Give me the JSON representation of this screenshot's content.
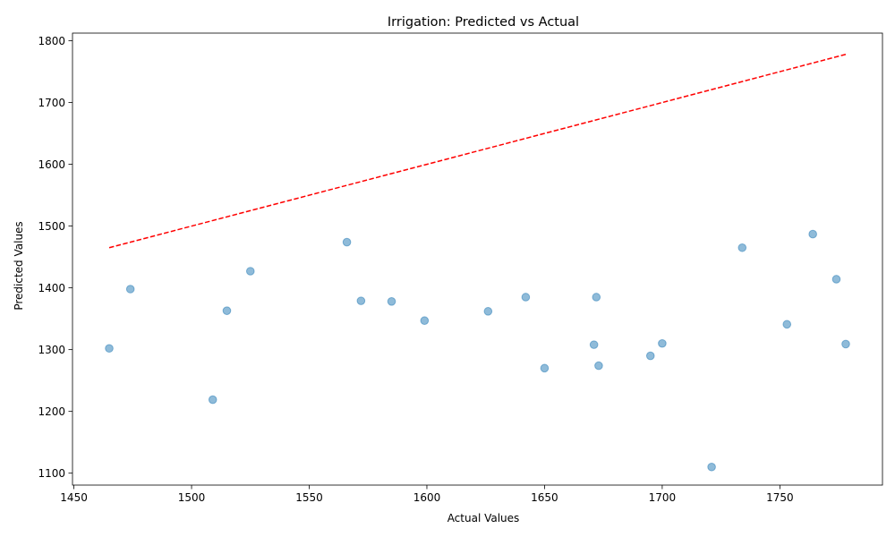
{
  "chart_data": {
    "type": "scatter",
    "title": "Irrigation: Predicted vs Actual",
    "xlabel": "Actual Values",
    "ylabel": "Predicted Values",
    "xlim": [
      1449.4,
      1793.6
    ],
    "ylim": [
      1080.7,
      1812.4
    ],
    "xticks": [
      1450,
      1500,
      1550,
      1600,
      1650,
      1700,
      1750
    ],
    "yticks": [
      1100,
      1200,
      1300,
      1400,
      1500,
      1600,
      1700,
      1800
    ],
    "grid": false,
    "points": [
      {
        "x": 1465,
        "y": 1302
      },
      {
        "x": 1474,
        "y": 1398
      },
      {
        "x": 1509,
        "y": 1219
      },
      {
        "x": 1515,
        "y": 1363
      },
      {
        "x": 1525,
        "y": 1427
      },
      {
        "x": 1566,
        "y": 1474
      },
      {
        "x": 1572,
        "y": 1379
      },
      {
        "x": 1585,
        "y": 1378
      },
      {
        "x": 1599,
        "y": 1347
      },
      {
        "x": 1626,
        "y": 1362
      },
      {
        "x": 1642,
        "y": 1385
      },
      {
        "x": 1650,
        "y": 1270
      },
      {
        "x": 1671,
        "y": 1308
      },
      {
        "x": 1672,
        "y": 1385
      },
      {
        "x": 1673,
        "y": 1274
      },
      {
        "x": 1695,
        "y": 1290
      },
      {
        "x": 1700,
        "y": 1310
      },
      {
        "x": 1721,
        "y": 1110
      },
      {
        "x": 1734,
        "y": 1465
      },
      {
        "x": 1753,
        "y": 1341
      },
      {
        "x": 1764,
        "y": 1487
      },
      {
        "x": 1774,
        "y": 1414
      },
      {
        "x": 1778,
        "y": 1309
      }
    ],
    "reference_line": {
      "x": [
        1465,
        1778
      ],
      "y": [
        1465,
        1778
      ],
      "color": "#ff0000",
      "style": "dashed"
    },
    "point_color": "#1f77b4",
    "point_alpha": 0.5
  }
}
